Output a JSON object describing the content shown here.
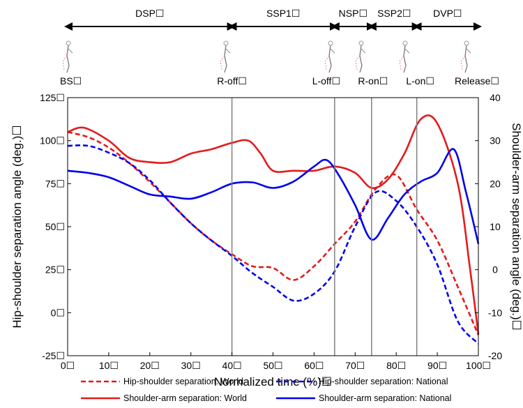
{
  "chart_data": {
    "type": "line",
    "xlabel": "Normalized time (%)☐",
    "ylabel_left": "Hip-shoulder separation angle (deg.)☐",
    "ylabel_right": "Shoulder-arm separation angle (deg.)☐",
    "xlim": [
      0,
      100
    ],
    "ylim_left": [
      -25,
      125
    ],
    "ylim_right": [
      -20,
      40
    ],
    "x_ticks": [
      0,
      10,
      20,
      30,
      40,
      50,
      60,
      70,
      80,
      90,
      100
    ],
    "x_tick_labels": [
      "0☐",
      "10☐",
      "20☐",
      "30☐",
      "40☐",
      "50☐",
      "60☐",
      "70☐",
      "80☐",
      "90☐",
      "100☐"
    ],
    "y_left_ticks": [
      -25,
      0,
      25,
      50,
      75,
      100,
      125
    ],
    "y_left_tick_labels": [
      "-25☐",
      "0☐",
      "25☐",
      "50☐",
      "75☐",
      "100☐",
      "125☐"
    ],
    "y_right_ticks": [
      -20,
      -10,
      0,
      10,
      20,
      30,
      40
    ],
    "y_right_tick_labels": [
      "-20",
      "-10",
      "0",
      "10",
      "20",
      "30",
      "40"
    ],
    "event_lines": [
      {
        "x": 40,
        "label": "R-off☐"
      },
      {
        "x": 65,
        "label": "L-off☐"
      },
      {
        "x": 74,
        "label": "R-on☐"
      },
      {
        "x": 85,
        "label": "L-on☐"
      }
    ],
    "event_labels": [
      {
        "x": 0,
        "label": "BS☐"
      },
      {
        "x": 40,
        "label": "R-off☐"
      },
      {
        "x": 65,
        "label": "L-off☐"
      },
      {
        "x": 74,
        "label": "R-on☐"
      },
      {
        "x": 85,
        "label": "L-on☐"
      },
      {
        "x": 100,
        "label": "Release☐"
      }
    ],
    "phases": [
      {
        "label": "DSP☐",
        "start": 0,
        "end": 40
      },
      {
        "label": "SSP1☐",
        "start": 40,
        "end": 65
      },
      {
        "label": "NSP☐",
        "start": 65,
        "end": 74
      },
      {
        "label": "SSP2☐",
        "start": 74,
        "end": 85
      },
      {
        "label": "DVP☐",
        "start": 85,
        "end": 100
      }
    ],
    "series": [
      {
        "name": "Hip-shoulder separation: World",
        "axis": "left",
        "color": "#e41a1c",
        "dash": true,
        "points": [
          [
            0,
            105
          ],
          [
            5,
            102
          ],
          [
            10,
            96
          ],
          [
            15,
            87
          ],
          [
            20,
            76
          ],
          [
            25,
            64
          ],
          [
            30,
            52
          ],
          [
            35,
            42
          ],
          [
            40,
            34
          ],
          [
            45,
            27
          ],
          [
            50,
            26
          ],
          [
            55,
            19
          ],
          [
            60,
            27
          ],
          [
            65,
            40
          ],
          [
            70,
            53
          ],
          [
            75,
            72
          ],
          [
            80,
            80
          ],
          [
            85,
            60
          ],
          [
            90,
            42
          ],
          [
            95,
            15
          ],
          [
            100,
            -13
          ]
        ]
      },
      {
        "name": "Hip-shoulder separation: National",
        "axis": "left",
        "color": "#0000ee",
        "dash": true,
        "points": [
          [
            0,
            97
          ],
          [
            5,
            97
          ],
          [
            10,
            93
          ],
          [
            15,
            87
          ],
          [
            20,
            77
          ],
          [
            25,
            64
          ],
          [
            30,
            52
          ],
          [
            35,
            42
          ],
          [
            40,
            33
          ],
          [
            45,
            23
          ],
          [
            50,
            15
          ],
          [
            55,
            7
          ],
          [
            60,
            11
          ],
          [
            65,
            24
          ],
          [
            70,
            50
          ],
          [
            75,
            70
          ],
          [
            80,
            65
          ],
          [
            85,
            50
          ],
          [
            90,
            28
          ],
          [
            95,
            -5
          ],
          [
            100,
            -18
          ]
        ]
      },
      {
        "name": "Shoulder-arm separation: World",
        "axis": "right",
        "color": "#e41a1c",
        "dash": false,
        "points": [
          [
            0,
            32
          ],
          [
            4,
            33
          ],
          [
            10,
            30
          ],
          [
            15,
            26
          ],
          [
            20,
            25
          ],
          [
            25,
            25
          ],
          [
            30,
            27
          ],
          [
            35,
            28
          ],
          [
            40,
            29.5
          ],
          [
            44,
            30
          ],
          [
            47,
            27
          ],
          [
            50,
            23
          ],
          [
            55,
            23
          ],
          [
            60,
            23
          ],
          [
            65,
            24
          ],
          [
            70,
            22.5
          ],
          [
            74,
            19
          ],
          [
            78,
            21
          ],
          [
            82,
            27
          ],
          [
            86,
            35
          ],
          [
            90,
            34
          ],
          [
            95,
            20
          ],
          [
            98,
            0
          ],
          [
            100,
            -15
          ]
        ]
      },
      {
        "name": "Shoulder-arm separation: National",
        "axis": "right",
        "color": "#0000ee",
        "dash": false,
        "points": [
          [
            0,
            23
          ],
          [
            5,
            22.5
          ],
          [
            10,
            21.5
          ],
          [
            15,
            19.5
          ],
          [
            20,
            17.5
          ],
          [
            25,
            17
          ],
          [
            30,
            16.5
          ],
          [
            35,
            18
          ],
          [
            40,
            20
          ],
          [
            45,
            20.3
          ],
          [
            50,
            19
          ],
          [
            55,
            20.5
          ],
          [
            60,
            24
          ],
          [
            63,
            25.5
          ],
          [
            66,
            22
          ],
          [
            70,
            15
          ],
          [
            74,
            7
          ],
          [
            78,
            12
          ],
          [
            82,
            17.5
          ],
          [
            86,
            20.5
          ],
          [
            90,
            22.5
          ],
          [
            94,
            28
          ],
          [
            97,
            18
          ],
          [
            100,
            6
          ]
        ]
      }
    ],
    "legend": [
      {
        "name": "Hip-shoulder separation: World",
        "color": "#e41a1c",
        "dash": true
      },
      {
        "name": "Hip-shoulder separation: National",
        "color": "#0000ee",
        "dash": true
      },
      {
        "name": "Shoulder-arm separation: World",
        "color": "#e41a1c",
        "dash": false
      },
      {
        "name": "Shoulder-arm separation: National",
        "color": "#0000ee",
        "dash": false
      }
    ],
    "legend_placement": "bottom",
    "grid": false
  }
}
